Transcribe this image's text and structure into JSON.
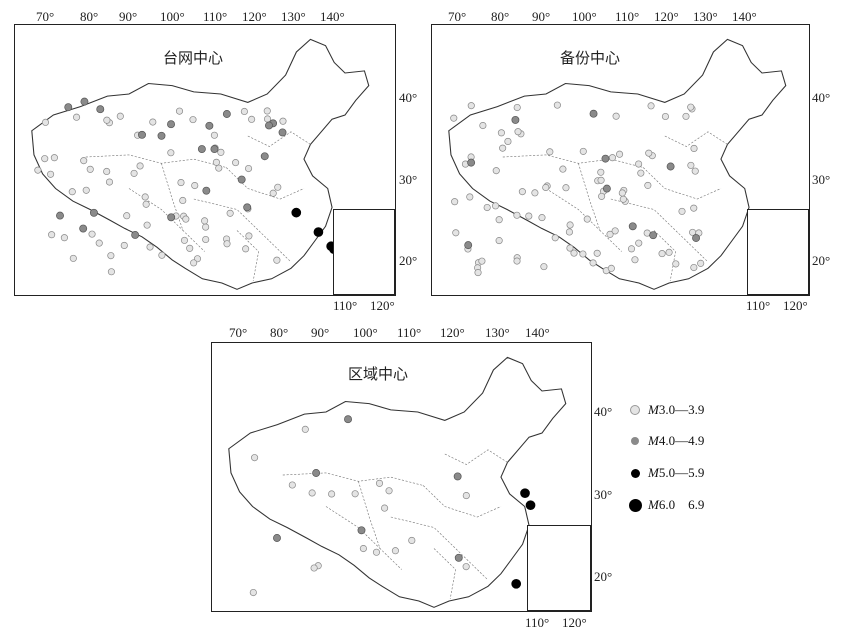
{
  "top_axis_labels": [
    "70°",
    "80°",
    "90°",
    "100°",
    "110°",
    "120°",
    "130°",
    "140°"
  ],
  "right_axis_labels": [
    "40°",
    "30°",
    "20°"
  ],
  "bottom_axis_labels": [
    "110°",
    "120°"
  ],
  "panels": [
    {
      "title": "台网中心"
    },
    {
      "title": "备份中心"
    },
    {
      "title": "区域中心"
    }
  ],
  "legend": [
    {
      "mag_prefix": "M",
      "range": "3.0—3.9",
      "color": "#e4e4e4",
      "size": "small"
    },
    {
      "mag_prefix": "M",
      "range": "4.0—4.9",
      "color": "#8a8a8a",
      "size": "small"
    },
    {
      "mag_prefix": "M",
      "range": "5.0—5.9",
      "color": "#000000",
      "size": "medium"
    },
    {
      "mag_prefix": "M",
      "range": "6.0    6.9",
      "color": "#000000",
      "size": "large"
    }
  ]
}
